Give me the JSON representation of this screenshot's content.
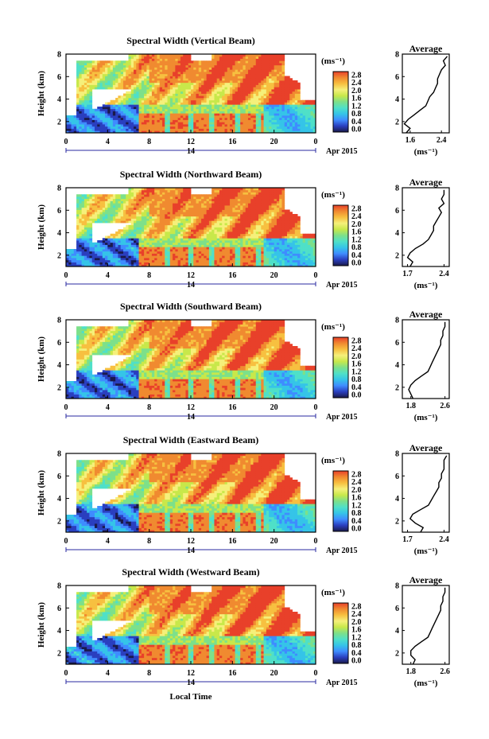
{
  "figure": {
    "x_axis_label": "Local Time",
    "date_label": "Apr 2015",
    "day_label": "14",
    "unit_label": "(ms⁻¹)",
    "average_title": "Average",
    "height_label": "Height (km)"
  },
  "colorbar": {
    "stops": [
      "#1a1a4a",
      "#2a3fbf",
      "#3f8cff",
      "#35c4e8",
      "#4fe0c8",
      "#7de08a",
      "#c8e84a",
      "#f5f07a",
      "#f7c040",
      "#f08a30",
      "#e8402a"
    ],
    "tick_labels": [
      "0.0",
      "0.4",
      "0.8",
      "1.2",
      "1.6",
      "2.0",
      "2.4",
      "2.8"
    ]
  },
  "chart_data": [
    {
      "type": "heatmap",
      "title": "Spectral Width (Vertical Beam)",
      "ylabel": "Height (km)",
      "x_ticks": [
        "0",
        "4",
        "8",
        "12",
        "16",
        "20",
        "0"
      ],
      "xlim": [
        0,
        24
      ],
      "y_ticks": [
        "2",
        "4",
        "6",
        "8"
      ],
      "ylim": [
        1,
        8
      ],
      "colorbar_ticks": [
        "0.0",
        "0.4",
        "0.8",
        "1.2",
        "1.6",
        "2.0",
        "2.4",
        "2.8"
      ],
      "average": {
        "xticks": [
          "1.6",
          "2.4"
        ],
        "xlim": [
          1.4,
          2.6
        ],
        "height": [
          1.0,
          1.4,
          1.8,
          2.2,
          2.6,
          3.0,
          3.4,
          3.8,
          4.2,
          4.6,
          5.0,
          5.4,
          5.8,
          6.2,
          6.6,
          7.0,
          7.4,
          7.8
        ],
        "value": [
          1.5,
          1.6,
          1.45,
          1.55,
          1.7,
          1.85,
          2.0,
          2.05,
          2.1,
          2.2,
          2.25,
          2.3,
          2.3,
          2.35,
          2.4,
          2.5,
          2.45,
          2.55
        ]
      }
    },
    {
      "type": "heatmap",
      "title": "Spectral Width (Northward Beam)",
      "ylabel": "Height (km)",
      "x_ticks": [
        "0",
        "4",
        "8",
        "12",
        "16",
        "20",
        "0"
      ],
      "xlim": [
        0,
        24
      ],
      "y_ticks": [
        "2",
        "4",
        "6",
        "8"
      ],
      "ylim": [
        1,
        8
      ],
      "colorbar_ticks": [
        "0.0",
        "0.4",
        "0.8",
        "1.2",
        "1.6",
        "2.0",
        "2.4",
        "2.8"
      ],
      "average": {
        "xticks": [
          "1.7",
          "2.4"
        ],
        "xlim": [
          1.6,
          2.5
        ],
        "height": [
          1.0,
          1.4,
          1.8,
          2.2,
          2.6,
          3.0,
          3.4,
          3.8,
          4.2,
          4.6,
          5.0,
          5.4,
          5.8,
          6.2,
          6.6,
          7.0,
          7.4,
          7.8
        ],
        "value": [
          1.75,
          1.8,
          1.7,
          1.75,
          1.85,
          2.0,
          2.1,
          2.15,
          2.2,
          2.2,
          2.25,
          2.3,
          2.35,
          2.3,
          2.4,
          2.35,
          2.4,
          2.4
        ]
      }
    },
    {
      "type": "heatmap",
      "title": "Spectral Width (Southward Beam)",
      "ylabel": "Height (km)",
      "x_ticks": [
        "0",
        "4",
        "8",
        "12",
        "16",
        "20",
        "0"
      ],
      "xlim": [
        0,
        24
      ],
      "y_ticks": [
        "2",
        "4",
        "6",
        "8"
      ],
      "ylim": [
        1,
        8
      ],
      "colorbar_ticks": [
        "0.0",
        "0.4",
        "0.8",
        "1.2",
        "1.6",
        "2.0",
        "2.4",
        "2.8"
      ],
      "average": {
        "xticks": [
          "1.8",
          "2.6"
        ],
        "xlim": [
          1.6,
          2.7
        ],
        "height": [
          1.0,
          1.4,
          1.8,
          2.2,
          2.6,
          3.0,
          3.4,
          3.8,
          4.2,
          4.6,
          5.0,
          5.4,
          5.8,
          6.2,
          6.6,
          7.0,
          7.4,
          7.8
        ],
        "value": [
          1.85,
          1.8,
          1.75,
          1.8,
          1.9,
          2.05,
          2.2,
          2.25,
          2.3,
          2.35,
          2.4,
          2.45,
          2.5,
          2.5,
          2.55,
          2.55,
          2.6,
          2.6
        ]
      }
    },
    {
      "type": "heatmap",
      "title": "Spectral Width (Eastward Beam)",
      "ylabel": "Height (km)",
      "x_ticks": [
        "0",
        "4",
        "8",
        "12",
        "16",
        "20",
        "0"
      ],
      "xlim": [
        0,
        24
      ],
      "y_ticks": [
        "2",
        "4",
        "6",
        "8"
      ],
      "ylim": [
        1,
        8
      ],
      "colorbar_ticks": [
        "0.0",
        "0.4",
        "0.8",
        "1.2",
        "1.6",
        "2.0",
        "2.4",
        "2.8"
      ],
      "average": {
        "xticks": [
          "1.7",
          "2.4"
        ],
        "xlim": [
          1.6,
          2.5
        ],
        "height": [
          1.0,
          1.4,
          1.8,
          2.2,
          2.6,
          3.0,
          3.4,
          3.8,
          4.2,
          4.6,
          5.0,
          5.4,
          5.8,
          6.2,
          6.6,
          7.0,
          7.4,
          7.8
        ],
        "value": [
          1.95,
          2.0,
          1.85,
          1.75,
          1.8,
          1.95,
          2.1,
          2.15,
          2.2,
          2.25,
          2.3,
          2.3,
          2.35,
          2.35,
          2.4,
          2.4,
          2.4,
          2.45
        ]
      }
    },
    {
      "type": "heatmap",
      "title": "Spectral Width (Westward Beam)",
      "ylabel": "Height (km)",
      "x_ticks": [
        "0",
        "4",
        "8",
        "12",
        "16",
        "20",
        "0"
      ],
      "xlim": [
        0,
        24
      ],
      "y_ticks": [
        "2",
        "4",
        "6",
        "8"
      ],
      "ylim": [
        1,
        8
      ],
      "colorbar_ticks": [
        "0.0",
        "0.4",
        "0.8",
        "1.2",
        "1.6",
        "2.0",
        "2.4",
        "2.8"
      ],
      "average": {
        "xticks": [
          "1.8",
          "2.6"
        ],
        "xlim": [
          1.6,
          2.7
        ],
        "height": [
          1.0,
          1.4,
          1.8,
          2.2,
          2.6,
          3.0,
          3.4,
          3.8,
          4.2,
          4.6,
          5.0,
          5.4,
          5.8,
          6.2,
          6.6,
          7.0,
          7.4,
          7.8
        ],
        "value": [
          1.85,
          1.9,
          1.8,
          1.8,
          1.9,
          2.05,
          2.2,
          2.25,
          2.3,
          2.35,
          2.4,
          2.45,
          2.5,
          2.5,
          2.55,
          2.55,
          2.6,
          2.6
        ]
      }
    }
  ]
}
